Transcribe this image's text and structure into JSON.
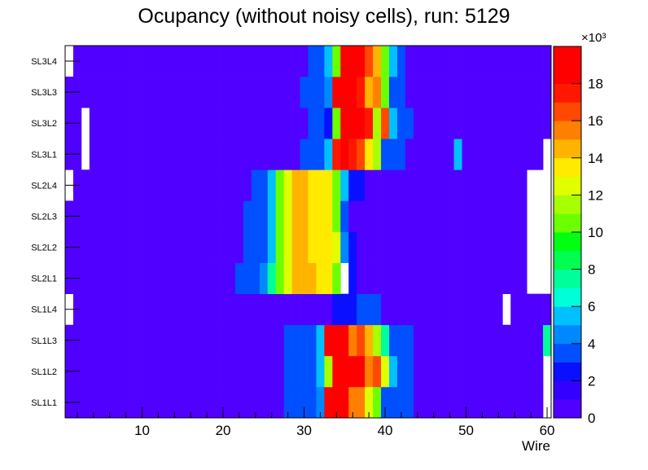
{
  "chart_data": {
    "type": "heatmap",
    "title": "Ocupancy (without noisy cells), run: 5129",
    "xlabel": "Wire",
    "ylabel": "",
    "x_range": [
      0.5,
      60.5
    ],
    "x_ticks": [
      10,
      20,
      30,
      40,
      50,
      60
    ],
    "y_categories": [
      "SL1L1",
      "SL1L2",
      "SL1L3",
      "SL1L4",
      "SL2L1",
      "SL2L2",
      "SL2L3",
      "SL2L4",
      "SL3L1",
      "SL3L2",
      "SL3L3",
      "SL3L4"
    ],
    "z_range": [
      0,
      20000
    ],
    "z_ticks": [
      0,
      2,
      4,
      6,
      8,
      10,
      12,
      14,
      16,
      18
    ],
    "z_exponent_label": "×10³",
    "palette": [
      "#5000ff",
      "#3300ff",
      "#0a10ff",
      "#0050ff",
      "#0088ff",
      "#00c0ff",
      "#00ffd8",
      "#00ff9a",
      "#00ff50",
      "#00ff10",
      "#6cff00",
      "#a8ff00",
      "#e0ff00",
      "#ffea00",
      "#ffb400",
      "#ff8000",
      "#ff4800",
      "#ff1800",
      "#ff0000"
    ],
    "background_value": 500,
    "rows": {
      "SL1L1": {
        "empty": [
          60
        ],
        "cells": [
          [
            28,
            3000
          ],
          [
            29,
            3000
          ],
          [
            30,
            3000
          ],
          [
            31,
            3000
          ],
          [
            32,
            4000
          ],
          [
            33,
            18500
          ],
          [
            34,
            18500
          ],
          [
            35,
            18500
          ],
          [
            36,
            15500
          ],
          [
            37,
            15000
          ],
          [
            38,
            12000
          ],
          [
            39,
            10500
          ],
          [
            40,
            3000
          ],
          [
            41,
            3000
          ],
          [
            42,
            3000
          ],
          [
            43,
            3000
          ]
        ]
      },
      "SL1L2": {
        "empty": [
          60
        ],
        "cells": [
          [
            28,
            3000
          ],
          [
            29,
            3000
          ],
          [
            30,
            3000
          ],
          [
            31,
            3000
          ],
          [
            32,
            5500
          ],
          [
            33,
            11000
          ],
          [
            34,
            19000
          ],
          [
            35,
            18000
          ],
          [
            36,
            18000
          ],
          [
            37,
            18500
          ],
          [
            38,
            15500
          ],
          [
            39,
            16000
          ],
          [
            40,
            12000
          ],
          [
            41,
            5500
          ],
          [
            42,
            3000
          ],
          [
            43,
            3000
          ]
        ]
      },
      "SL1L3": {
        "cells": [
          [
            28,
            3000
          ],
          [
            29,
            3000
          ],
          [
            30,
            3000
          ],
          [
            31,
            3000
          ],
          [
            32,
            5500
          ],
          [
            33,
            18000
          ],
          [
            34,
            18000
          ],
          [
            35,
            18000
          ],
          [
            36,
            15500
          ],
          [
            37,
            16000
          ],
          [
            38,
            14000
          ],
          [
            39,
            11000
          ],
          [
            40,
            7000
          ],
          [
            41,
            3000
          ],
          [
            42,
            3000
          ],
          [
            43,
            3000
          ],
          [
            60,
            7000
          ]
        ]
      },
      "SL1L4": {
        "empty": [
          1,
          55
        ],
        "cells": [
          [
            34,
            2500
          ],
          [
            35,
            2500
          ],
          [
            36,
            2500
          ],
          [
            37,
            3000
          ],
          [
            38,
            3000
          ],
          [
            39,
            3000
          ]
        ]
      },
      "SL2L1": {
        "empty": [
          35,
          58,
          59,
          60
        ],
        "cells": [
          [
            22,
            3000
          ],
          [
            23,
            3000
          ],
          [
            24,
            3000
          ],
          [
            25,
            4000
          ],
          [
            26,
            7000
          ],
          [
            27,
            10000
          ],
          [
            28,
            12000
          ],
          [
            29,
            14500
          ],
          [
            30,
            14500
          ],
          [
            31,
            14500
          ],
          [
            32,
            13000
          ],
          [
            33,
            13000
          ],
          [
            34,
            10000
          ],
          [
            36,
            2500
          ]
        ]
      },
      "SL2L2": {
        "empty": [
          58,
          59,
          60
        ],
        "cells": [
          [
            23,
            3000
          ],
          [
            24,
            3000
          ],
          [
            25,
            3000
          ],
          [
            26,
            5500
          ],
          [
            27,
            10000
          ],
          [
            28,
            12500
          ],
          [
            29,
            14500
          ],
          [
            30,
            14500
          ],
          [
            31,
            13500
          ],
          [
            32,
            13000
          ],
          [
            33,
            13000
          ],
          [
            34,
            12000
          ],
          [
            35,
            4500
          ],
          [
            36,
            2500
          ]
        ]
      },
      "SL2L3": {
        "empty": [
          58,
          59,
          60
        ],
        "cells": [
          [
            23,
            3000
          ],
          [
            24,
            3000
          ],
          [
            25,
            3000
          ],
          [
            26,
            5000
          ],
          [
            27,
            10000
          ],
          [
            28,
            12500
          ],
          [
            29,
            14500
          ],
          [
            30,
            14500
          ],
          [
            31,
            13500
          ],
          [
            32,
            13000
          ],
          [
            33,
            13000
          ],
          [
            34,
            10000
          ],
          [
            35,
            3000
          ]
        ]
      },
      "SL2L4": {
        "empty": [
          1,
          58,
          59,
          60
        ],
        "cells": [
          [
            24,
            3000
          ],
          [
            25,
            3000
          ],
          [
            26,
            5500
          ],
          [
            27,
            10000
          ],
          [
            28,
            12000
          ],
          [
            29,
            14500
          ],
          [
            30,
            14500
          ],
          [
            31,
            13000
          ],
          [
            32,
            13000
          ],
          [
            33,
            13000
          ],
          [
            34,
            10000
          ],
          [
            35,
            5000
          ],
          [
            36,
            2500
          ],
          [
            37,
            2500
          ]
        ]
      },
      "SL3L1": {
        "empty": [
          3,
          60
        ],
        "cells": [
          [
            30,
            3000
          ],
          [
            31,
            3000
          ],
          [
            32,
            3000
          ],
          [
            33,
            5500
          ],
          [
            34,
            17500
          ],
          [
            35,
            18500
          ],
          [
            36,
            17500
          ],
          [
            37,
            16000
          ],
          [
            38,
            13500
          ],
          [
            39,
            11000
          ],
          [
            40,
            3000
          ],
          [
            41,
            3000
          ],
          [
            42,
            3000
          ],
          [
            49,
            5500
          ]
        ]
      },
      "SL3L2": {
        "empty": [
          3
        ],
        "cells": [
          [
            31,
            3000
          ],
          [
            32,
            3000
          ],
          [
            33,
            2500
          ],
          [
            34,
            10000
          ],
          [
            35,
            19000
          ],
          [
            36,
            18000
          ],
          [
            37,
            18000
          ],
          [
            38,
            17000
          ],
          [
            39,
            11500
          ],
          [
            40,
            16000
          ],
          [
            41,
            5500
          ],
          [
            42,
            3000
          ],
          [
            43,
            3000
          ]
        ]
      },
      "SL3L3": {
        "cells": [
          [
            30,
            3000
          ],
          [
            31,
            3000
          ],
          [
            32,
            3000
          ],
          [
            33,
            4500
          ],
          [
            34,
            18000
          ],
          [
            35,
            18500
          ],
          [
            36,
            18000
          ],
          [
            37,
            17000
          ],
          [
            38,
            14500
          ],
          [
            39,
            15500
          ],
          [
            40,
            10000
          ],
          [
            41,
            3000
          ],
          [
            42,
            3000
          ]
        ]
      },
      "SL3L4": {
        "empty": [
          1
        ],
        "cells": [
          [
            31,
            3000
          ],
          [
            32,
            3000
          ],
          [
            33,
            5500
          ],
          [
            34,
            10000
          ],
          [
            35,
            19500
          ],
          [
            36,
            18000
          ],
          [
            37,
            18000
          ],
          [
            38,
            16500
          ],
          [
            39,
            14500
          ],
          [
            40,
            10000
          ],
          [
            41,
            5000
          ],
          [
            42,
            3000
          ]
        ]
      }
    }
  }
}
